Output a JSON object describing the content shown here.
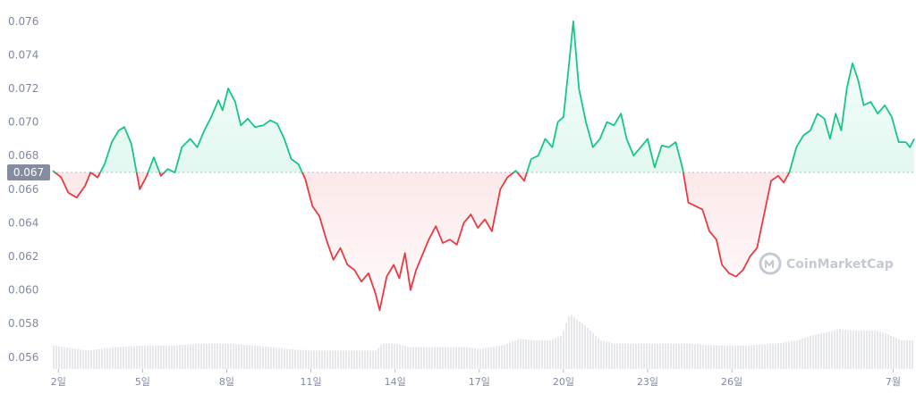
{
  "chart_data": {
    "type": "area",
    "baseline": 0.067,
    "baseline_label": "0.067",
    "ylim": [
      0.0553,
      0.0762
    ],
    "y_ticks": [
      "0.076",
      "0.074",
      "0.072",
      "0.070",
      "0.068",
      "0.066",
      "0.064",
      "0.062",
      "0.060",
      "0.058",
      "0.056"
    ],
    "x_ticks": [
      {
        "label": "2일",
        "x": 0
      },
      {
        "label": "5일",
        "x": 3
      },
      {
        "label": "8일",
        "x": 6
      },
      {
        "label": "11일",
        "x": 9
      },
      {
        "label": "14일",
        "x": 12
      },
      {
        "label": "17일",
        "x": 15
      },
      {
        "label": "20일",
        "x": 18
      },
      {
        "label": "23일",
        "x": 21
      },
      {
        "label": "26일",
        "x": 24
      },
      {
        "label": "7월",
        "x": 29.75
      }
    ],
    "xlim": [
      -0.2,
      30.5
    ],
    "colors": {
      "up": "#16c784",
      "down": "#ea3943",
      "volume": "#e6e8ec"
    },
    "price": [
      [
        -0.2,
        0.0671
      ],
      [
        0.1,
        0.0667
      ],
      [
        0.35,
        0.0658
      ],
      [
        0.65,
        0.0655
      ],
      [
        0.95,
        0.0662
      ],
      [
        1.15,
        0.067
      ],
      [
        1.4,
        0.0667
      ],
      [
        1.65,
        0.0675
      ],
      [
        1.9,
        0.0688
      ],
      [
        2.15,
        0.0695
      ],
      [
        2.35,
        0.0697
      ],
      [
        2.6,
        0.0687
      ],
      [
        2.9,
        0.066
      ],
      [
        3.15,
        0.0668
      ],
      [
        3.4,
        0.0679
      ],
      [
        3.65,
        0.0668
      ],
      [
        3.9,
        0.0672
      ],
      [
        4.15,
        0.067
      ],
      [
        4.4,
        0.0685
      ],
      [
        4.7,
        0.069
      ],
      [
        4.95,
        0.0685
      ],
      [
        5.2,
        0.0695
      ],
      [
        5.45,
        0.0703
      ],
      [
        5.7,
        0.0713
      ],
      [
        5.85,
        0.0707
      ],
      [
        6.05,
        0.072
      ],
      [
        6.3,
        0.0712
      ],
      [
        6.5,
        0.0698
      ],
      [
        6.75,
        0.0702
      ],
      [
        7.0,
        0.0697
      ],
      [
        7.3,
        0.0698
      ],
      [
        7.55,
        0.0701
      ],
      [
        7.8,
        0.0699
      ],
      [
        8.05,
        0.069
      ],
      [
        8.3,
        0.0678
      ],
      [
        8.55,
        0.0675
      ],
      [
        8.8,
        0.0666
      ],
      [
        9.05,
        0.065
      ],
      [
        9.3,
        0.0644
      ],
      [
        9.55,
        0.063
      ],
      [
        9.8,
        0.0618
      ],
      [
        10.05,
        0.0625
      ],
      [
        10.3,
        0.0615
      ],
      [
        10.55,
        0.0612
      ],
      [
        10.8,
        0.0605
      ],
      [
        11.05,
        0.061
      ],
      [
        11.3,
        0.0598
      ],
      [
        11.45,
        0.0588
      ],
      [
        11.7,
        0.0608
      ],
      [
        11.95,
        0.0615
      ],
      [
        12.15,
        0.0607
      ],
      [
        12.35,
        0.0622
      ],
      [
        12.55,
        0.06
      ],
      [
        12.75,
        0.0612
      ],
      [
        12.95,
        0.062
      ],
      [
        13.2,
        0.063
      ],
      [
        13.45,
        0.0638
      ],
      [
        13.7,
        0.0628
      ],
      [
        13.95,
        0.063
      ],
      [
        14.2,
        0.0627
      ],
      [
        14.45,
        0.064
      ],
      [
        14.7,
        0.0645
      ],
      [
        14.95,
        0.0637
      ],
      [
        15.2,
        0.0642
      ],
      [
        15.45,
        0.0635
      ],
      [
        15.75,
        0.066
      ],
      [
        16.0,
        0.0667
      ],
      [
        16.3,
        0.0671
      ],
      [
        16.6,
        0.0665
      ],
      [
        16.85,
        0.0678
      ],
      [
        17.1,
        0.068
      ],
      [
        17.35,
        0.069
      ],
      [
        17.6,
        0.0685
      ],
      [
        17.8,
        0.07
      ],
      [
        18.0,
        0.0703
      ],
      [
        18.2,
        0.0735
      ],
      [
        18.35,
        0.076
      ],
      [
        18.55,
        0.072
      ],
      [
        18.8,
        0.07
      ],
      [
        19.05,
        0.0685
      ],
      [
        19.3,
        0.069
      ],
      [
        19.55,
        0.07
      ],
      [
        19.8,
        0.0698
      ],
      [
        20.05,
        0.0705
      ],
      [
        20.25,
        0.069
      ],
      [
        20.5,
        0.068
      ],
      [
        20.75,
        0.0685
      ],
      [
        21.0,
        0.069
      ],
      [
        21.25,
        0.0673
      ],
      [
        21.5,
        0.0686
      ],
      [
        21.75,
        0.0685
      ],
      [
        22.0,
        0.0688
      ],
      [
        22.25,
        0.0672
      ],
      [
        22.45,
        0.0652
      ],
      [
        22.7,
        0.065
      ],
      [
        22.95,
        0.0648
      ],
      [
        23.2,
        0.0635
      ],
      [
        23.45,
        0.063
      ],
      [
        23.65,
        0.0615
      ],
      [
        23.9,
        0.061
      ],
      [
        24.15,
        0.0608
      ],
      [
        24.4,
        0.0612
      ],
      [
        24.65,
        0.062
      ],
      [
        24.9,
        0.0625
      ],
      [
        25.15,
        0.0645
      ],
      [
        25.4,
        0.0665
      ],
      [
        25.65,
        0.0668
      ],
      [
        25.85,
        0.0664
      ],
      [
        26.05,
        0.067
      ],
      [
        26.3,
        0.0685
      ],
      [
        26.55,
        0.0692
      ],
      [
        26.8,
        0.0695
      ],
      [
        27.05,
        0.0705
      ],
      [
        27.3,
        0.0702
      ],
      [
        27.5,
        0.069
      ],
      [
        27.7,
        0.0705
      ],
      [
        27.9,
        0.0695
      ],
      [
        28.1,
        0.072
      ],
      [
        28.3,
        0.0735
      ],
      [
        28.5,
        0.0725
      ],
      [
        28.7,
        0.071
      ],
      [
        28.95,
        0.0712
      ],
      [
        29.2,
        0.0705
      ],
      [
        29.45,
        0.071
      ],
      [
        29.7,
        0.0703
      ],
      [
        29.95,
        0.0688
      ],
      [
        30.2,
        0.0688
      ],
      [
        30.35,
        0.0685
      ],
      [
        30.5,
        0.069
      ]
    ],
    "volume": [
      [
        -0.2,
        0.0567
      ],
      [
        1.0,
        0.0564
      ],
      [
        2.0,
        0.0566
      ],
      [
        3.0,
        0.0567
      ],
      [
        4.0,
        0.0567
      ],
      [
        5.0,
        0.0568
      ],
      [
        6.0,
        0.0568
      ],
      [
        7.0,
        0.0567
      ],
      [
        8.0,
        0.0565
      ],
      [
        9.0,
        0.0564
      ],
      [
        10.0,
        0.0564
      ],
      [
        10.5,
        0.0564
      ],
      [
        11.3,
        0.0564
      ],
      [
        11.5,
        0.0568
      ],
      [
        12.0,
        0.0568
      ],
      [
        12.5,
        0.0566
      ],
      [
        13.5,
        0.0566
      ],
      [
        14.5,
        0.0566
      ],
      [
        15.0,
        0.0565
      ],
      [
        15.8,
        0.0567
      ],
      [
        16.4,
        0.0571
      ],
      [
        16.9,
        0.057
      ],
      [
        17.5,
        0.057
      ],
      [
        17.9,
        0.0573
      ],
      [
        18.2,
        0.0586
      ],
      [
        18.5,
        0.0582
      ],
      [
        18.8,
        0.0578
      ],
      [
        19.3,
        0.057
      ],
      [
        19.8,
        0.0568
      ],
      [
        20.5,
        0.0568
      ],
      [
        21.5,
        0.0568
      ],
      [
        22.5,
        0.0568
      ],
      [
        23.5,
        0.0567
      ],
      [
        24.5,
        0.0567
      ],
      [
        25.5,
        0.0568
      ],
      [
        26.3,
        0.057
      ],
      [
        26.8,
        0.0573
      ],
      [
        27.4,
        0.0575
      ],
      [
        27.8,
        0.0577
      ],
      [
        28.1,
        0.0576
      ],
      [
        28.6,
        0.0576
      ],
      [
        29.1,
        0.0576
      ],
      [
        29.5,
        0.0574
      ],
      [
        30.0,
        0.057
      ],
      [
        30.5,
        0.057
      ]
    ]
  },
  "watermark": {
    "text": "CoinMarketCap",
    "icon": "coinmarketcap-logo"
  }
}
